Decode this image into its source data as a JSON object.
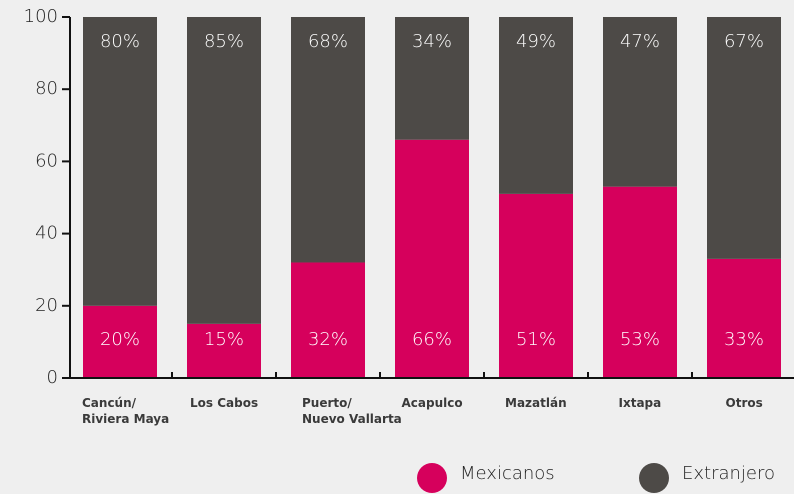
{
  "chart_data": {
    "type": "stacked_bar",
    "categories": [
      "Cancún/\nRiviera Maya",
      "Los Cabos",
      "Puerto/\nNuevo Vallarta",
      "Acapulco",
      "Mazatlán",
      "Ixtapa",
      "Otros"
    ],
    "series": [
      {
        "name": "Mexicanos",
        "color": "#d6005c",
        "values": [
          20,
          15,
          32,
          66,
          51,
          53,
          33
        ],
        "value_labels": [
          "20%",
          "15%",
          "32%",
          "66%",
          "51%",
          "53%",
          "33%"
        ]
      },
      {
        "name": "Extranjero",
        "color": "#4d4a47",
        "values": [
          80,
          85,
          68,
          34,
          49,
          47,
          67
        ],
        "value_labels": [
          "80%",
          "85%",
          "68%",
          "34%",
          "49%",
          "47%",
          "67%"
        ]
      }
    ],
    "ylim": [
      0,
      100
    ],
    "yticks": [
      0,
      20,
      40,
      60,
      80,
      100
    ]
  }
}
